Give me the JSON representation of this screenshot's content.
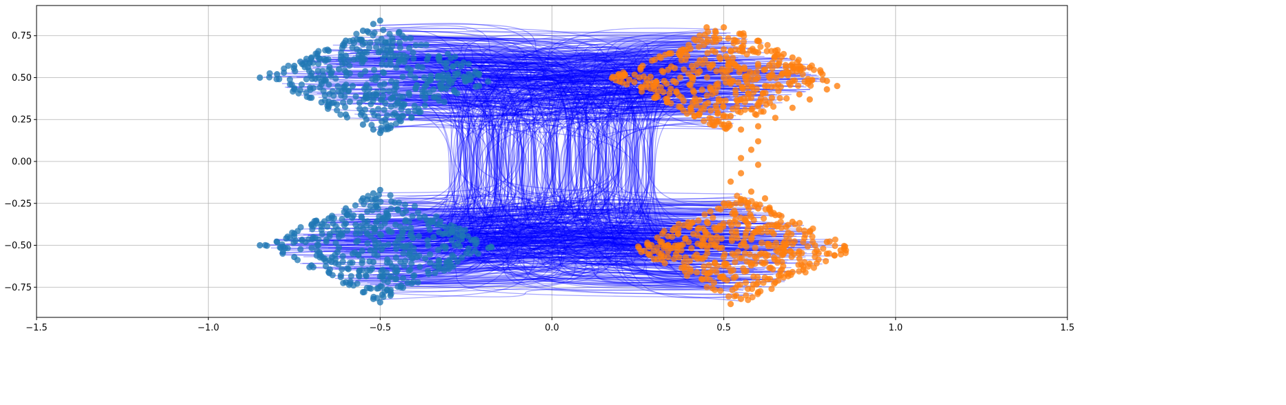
{
  "chart_data": {
    "type": "scatter",
    "title": "",
    "xlabel": "",
    "ylabel": "",
    "xlim": [
      -1.5,
      1.5
    ],
    "ylim": [
      -0.93,
      0.93
    ],
    "grid": true,
    "xticks": [
      -1.5,
      -1.0,
      -0.5,
      0.0,
      0.5,
      1.0,
      1.5
    ],
    "xtick_labels": [
      "−1.5",
      "−1.0",
      "−0.5",
      "0.0",
      "0.5",
      "1.0",
      "1.5"
    ],
    "yticks": [
      0.75,
      0.5,
      0.25,
      0.0,
      -0.25,
      -0.5,
      -0.75
    ],
    "ytick_labels": [
      "0.75",
      "0.50",
      "0.25",
      "0.00",
      "−0.25",
      "−0.50",
      "−0.75"
    ],
    "series": [
      {
        "kind": "scatter",
        "color": "#1f77b4",
        "clusters": [
          {
            "center": [
              -0.5,
              0.5
            ],
            "half_width": 0.35,
            "half_height": 0.33
          },
          {
            "center": [
              -0.5,
              -0.5
            ],
            "half_width": 0.35,
            "half_height": 0.33
          }
        ],
        "points": [
          [
            -0.85,
            0.5
          ],
          [
            -0.8,
            0.52
          ],
          [
            -0.75,
            0.57
          ],
          [
            -0.7,
            0.62
          ],
          [
            -0.65,
            0.66
          ],
          [
            -0.6,
            0.72
          ],
          [
            -0.55,
            0.78
          ],
          [
            -0.52,
            0.82
          ],
          [
            -0.5,
            0.84
          ],
          [
            -0.75,
            0.43
          ],
          [
            -0.7,
            0.38
          ],
          [
            -0.65,
            0.34
          ],
          [
            -0.6,
            0.28
          ],
          [
            -0.55,
            0.22
          ],
          [
            -0.52,
            0.19
          ],
          [
            -0.5,
            0.17
          ],
          [
            -0.47,
            0.2
          ],
          [
            -0.44,
            0.24
          ],
          [
            -0.68,
            0.5
          ],
          [
            -0.62,
            0.55
          ],
          [
            -0.58,
            0.45
          ],
          [
            -0.55,
            0.6
          ],
          [
            -0.52,
            0.4
          ],
          [
            -0.48,
            0.66
          ],
          [
            -0.45,
            0.35
          ],
          [
            -0.6,
            0.63
          ],
          [
            -0.56,
            0.35
          ],
          [
            -0.85,
            -0.5
          ],
          [
            -0.8,
            -0.48
          ],
          [
            -0.75,
            -0.43
          ],
          [
            -0.7,
            -0.38
          ],
          [
            -0.65,
            -0.34
          ],
          [
            -0.6,
            -0.28
          ],
          [
            -0.55,
            -0.22
          ],
          [
            -0.52,
            -0.19
          ],
          [
            -0.5,
            -0.17
          ],
          [
            -0.75,
            -0.57
          ],
          [
            -0.7,
            -0.62
          ],
          [
            -0.65,
            -0.66
          ],
          [
            -0.6,
            -0.72
          ],
          [
            -0.55,
            -0.78
          ],
          [
            -0.52,
            -0.82
          ],
          [
            -0.5,
            -0.84
          ],
          [
            -0.47,
            -0.8
          ],
          [
            -0.44,
            -0.75
          ],
          [
            -0.68,
            -0.5
          ],
          [
            -0.62,
            -0.45
          ],
          [
            -0.58,
            -0.55
          ],
          [
            -0.55,
            -0.4
          ],
          [
            -0.52,
            -0.6
          ],
          [
            -0.48,
            -0.34
          ],
          [
            -0.45,
            -0.65
          ],
          [
            -0.6,
            -0.37
          ],
          [
            -0.56,
            -0.65
          ]
        ]
      },
      {
        "kind": "scatter",
        "color": "#ff7f0e",
        "clusters": [
          {
            "center": [
              0.5,
              0.5
            ],
            "half_width": 0.33,
            "half_height": 0.32
          },
          {
            "center": [
              0.55,
              -0.52
            ],
            "half_width": 0.33,
            "half_height": 0.33
          }
        ],
        "points": [
          [
            0.45,
            0.8
          ],
          [
            0.5,
            0.8
          ],
          [
            0.55,
            0.76
          ],
          [
            0.6,
            0.72
          ],
          [
            0.65,
            0.66
          ],
          [
            0.7,
            0.62
          ],
          [
            0.75,
            0.56
          ],
          [
            0.8,
            0.48
          ],
          [
            0.83,
            0.45
          ],
          [
            0.5,
            0.22
          ],
          [
            0.55,
            0.19
          ],
          [
            0.6,
            0.21
          ],
          [
            0.65,
            0.26
          ],
          [
            0.7,
            0.32
          ],
          [
            0.75,
            0.37
          ],
          [
            0.8,
            0.43
          ],
          [
            0.52,
            0.27
          ],
          [
            0.58,
            0.31
          ],
          [
            0.5,
            0.5
          ],
          [
            0.56,
            0.55
          ],
          [
            0.62,
            0.45
          ],
          [
            0.66,
            0.58
          ],
          [
            0.7,
            0.48
          ],
          [
            0.6,
            0.65
          ],
          [
            0.54,
            0.36
          ],
          [
            0.72,
            0.4
          ],
          [
            0.64,
            0.38
          ],
          [
            0.6,
            0.12
          ],
          [
            0.58,
            0.07
          ],
          [
            0.55,
            0.02
          ],
          [
            0.6,
            -0.02
          ],
          [
            0.55,
            -0.07
          ],
          [
            0.52,
            -0.12
          ],
          [
            0.58,
            -0.18
          ],
          [
            0.62,
            -0.22
          ],
          [
            0.5,
            -0.25
          ],
          [
            0.52,
            -0.85
          ],
          [
            0.55,
            -0.82
          ],
          [
            0.6,
            -0.78
          ],
          [
            0.65,
            -0.72
          ],
          [
            0.7,
            -0.66
          ],
          [
            0.75,
            -0.61
          ],
          [
            0.8,
            -0.55
          ],
          [
            0.84,
            -0.53
          ],
          [
            0.85,
            -0.52
          ],
          [
            0.8,
            -0.48
          ],
          [
            0.75,
            -0.42
          ],
          [
            0.7,
            -0.36
          ],
          [
            0.65,
            -0.32
          ],
          [
            0.6,
            -0.28
          ],
          [
            0.56,
            -0.23
          ],
          [
            0.55,
            -0.5
          ],
          [
            0.62,
            -0.55
          ],
          [
            0.68,
            -0.5
          ],
          [
            0.58,
            -0.62
          ],
          [
            0.64,
            -0.42
          ],
          [
            0.72,
            -0.58
          ],
          [
            0.5,
            -0.7
          ],
          [
            0.48,
            -0.45
          ],
          [
            0.66,
            -0.68
          ]
        ]
      },
      {
        "kind": "trajectories",
        "color": "#0000ff",
        "opacity": 0.35,
        "count": 700
      }
    ]
  }
}
